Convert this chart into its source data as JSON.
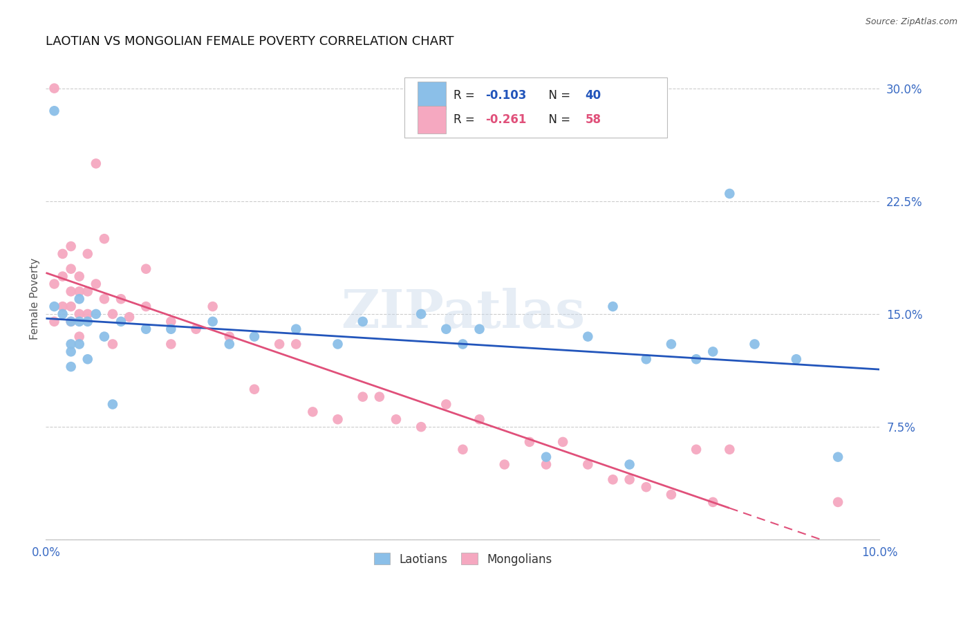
{
  "title": "LAOTIAN VS MONGOLIAN FEMALE POVERTY CORRELATION CHART",
  "source_text": "Source: ZipAtlas.com",
  "ylabel": "Female Poverty",
  "xlim": [
    0.0,
    0.1
  ],
  "ylim": [
    0.0,
    0.32
  ],
  "xticks": [
    0.0,
    0.025,
    0.05,
    0.075,
    0.1
  ],
  "xtick_labels": [
    "0.0%",
    "",
    "",
    "",
    "10.0%"
  ],
  "ytick_positions": [
    0.0,
    0.075,
    0.15,
    0.225,
    0.3
  ],
  "ytick_labels_right": [
    "",
    "7.5%",
    "15.0%",
    "22.5%",
    "30.0%"
  ],
  "background_color": "#ffffff",
  "grid_color": "#cccccc",
  "laotian_color": "#8bbfe8",
  "mongolian_color": "#f5a8c0",
  "laotian_line_color": "#2255bb",
  "mongolian_line_color": "#e0507a",
  "laotian_R": -0.103,
  "laotian_N": 40,
  "mongolian_R": -0.261,
  "mongolian_N": 58,
  "watermark": "ZIPatlas",
  "laotian_x": [
    0.001,
    0.001,
    0.002,
    0.003,
    0.003,
    0.003,
    0.003,
    0.004,
    0.004,
    0.004,
    0.005,
    0.005,
    0.006,
    0.007,
    0.008,
    0.009,
    0.012,
    0.015,
    0.02,
    0.022,
    0.025,
    0.03,
    0.035,
    0.038,
    0.045,
    0.048,
    0.05,
    0.052,
    0.06,
    0.065,
    0.068,
    0.07,
    0.072,
    0.075,
    0.078,
    0.08,
    0.082,
    0.085,
    0.09,
    0.095
  ],
  "laotian_y": [
    0.155,
    0.285,
    0.15,
    0.145,
    0.13,
    0.125,
    0.115,
    0.16,
    0.145,
    0.13,
    0.145,
    0.12,
    0.15,
    0.135,
    0.09,
    0.145,
    0.14,
    0.14,
    0.145,
    0.13,
    0.135,
    0.14,
    0.13,
    0.145,
    0.15,
    0.14,
    0.13,
    0.14,
    0.055,
    0.135,
    0.155,
    0.05,
    0.12,
    0.13,
    0.12,
    0.125,
    0.23,
    0.13,
    0.12,
    0.055
  ],
  "mongolian_x": [
    0.001,
    0.001,
    0.001,
    0.002,
    0.002,
    0.002,
    0.003,
    0.003,
    0.003,
    0.003,
    0.003,
    0.004,
    0.004,
    0.004,
    0.004,
    0.005,
    0.005,
    0.005,
    0.006,
    0.006,
    0.007,
    0.007,
    0.008,
    0.008,
    0.009,
    0.01,
    0.012,
    0.012,
    0.015,
    0.015,
    0.018,
    0.02,
    0.022,
    0.025,
    0.028,
    0.03,
    0.032,
    0.035,
    0.038,
    0.04,
    0.042,
    0.045,
    0.048,
    0.05,
    0.052,
    0.055,
    0.058,
    0.06,
    0.062,
    0.065,
    0.068,
    0.07,
    0.072,
    0.075,
    0.078,
    0.08,
    0.082,
    0.095
  ],
  "mongolian_y": [
    0.3,
    0.17,
    0.145,
    0.19,
    0.175,
    0.155,
    0.195,
    0.18,
    0.165,
    0.155,
    0.145,
    0.175,
    0.165,
    0.15,
    0.135,
    0.19,
    0.165,
    0.15,
    0.17,
    0.25,
    0.2,
    0.16,
    0.15,
    0.13,
    0.16,
    0.148,
    0.18,
    0.155,
    0.145,
    0.13,
    0.14,
    0.155,
    0.135,
    0.1,
    0.13,
    0.13,
    0.085,
    0.08,
    0.095,
    0.095,
    0.08,
    0.075,
    0.09,
    0.06,
    0.08,
    0.05,
    0.065,
    0.05,
    0.065,
    0.05,
    0.04,
    0.04,
    0.035,
    0.03,
    0.06,
    0.025,
    0.06,
    0.025
  ]
}
